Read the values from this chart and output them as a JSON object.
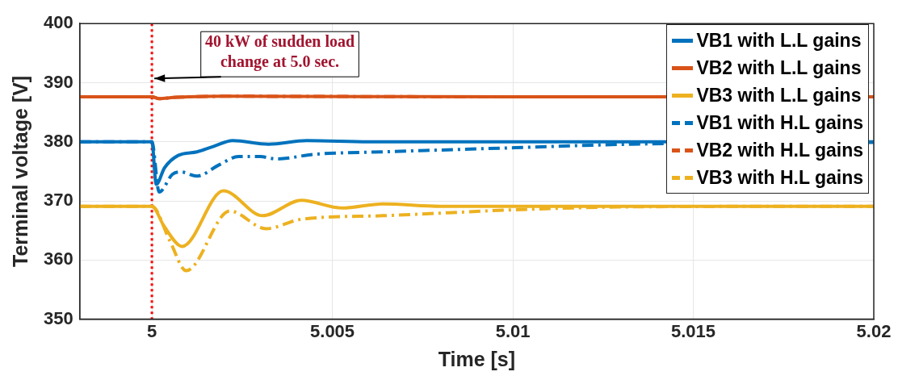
{
  "chart_data": {
    "type": "line",
    "xlabel": "Time [s]",
    "ylabel": "Terminal voltage [V]",
    "xlim": [
      4.998,
      5.02
    ],
    "xticks": [
      5,
      5.005,
      5.01,
      5.015,
      5.02
    ],
    "ylim": [
      350,
      400
    ],
    "yticks": [
      350,
      360,
      370,
      380,
      390,
      400
    ],
    "grid": true,
    "legend": "top right",
    "marker": "none",
    "ref_lines": [
      {
        "axis": "x",
        "value": 5,
        "color": "#ff0000",
        "line_style": "dotted"
      }
    ],
    "annotations": [
      {
        "text": "40 kW of sudden load change at 5.0 sec.",
        "x": 5,
        "y": 390.7
      }
    ],
    "series": [
      {
        "name": "VB1 with L.L gains",
        "color": "#0072bd",
        "line_style": "solid",
        "x": [
          4.998,
          5,
          5.00012,
          5.00035,
          5.00073,
          5.00125,
          5.0017,
          5.00224,
          5.00323,
          5.00429,
          5.006,
          5.01,
          5.02
        ],
        "values": [
          380,
          380,
          372.8,
          375.6,
          377.7,
          378.3,
          379.2,
          380.2,
          379.6,
          380.2,
          380,
          380,
          380
        ]
      },
      {
        "name": "VB2 with L.L gains",
        "color": "#d95319",
        "line_style": "solid",
        "x": [
          4.998,
          5,
          5.0002,
          5.0006,
          5.001,
          5.002,
          5.01,
          5.02
        ],
        "values": [
          387.6,
          387.6,
          387.3,
          387.5,
          387.6,
          387.7,
          387.6,
          387.6
        ]
      },
      {
        "name": "VB3 with L.L gains",
        "color": "#edb120",
        "line_style": "solid",
        "x": [
          4.998,
          5,
          5.00034,
          5.00084,
          5.00198,
          5.00307,
          5.00414,
          5.00527,
          5.0064,
          5.008,
          5.01,
          5.02
        ],
        "values": [
          369.1,
          369.1,
          365.7,
          362.3,
          371.7,
          367.5,
          370.1,
          368.8,
          369.5,
          369.1,
          369.1,
          369.1
        ]
      },
      {
        "name": "VB1 with H.L gains",
        "color": "#0072bd",
        "line_style": "dashed",
        "x": [
          4.998,
          5,
          5.0002,
          5.00057,
          5.0008,
          5.00125,
          5.00186,
          5.0024,
          5.003,
          5.00345,
          5.00452,
          5.0064,
          5.01005,
          5.0133,
          5.02
        ],
        "values": [
          380,
          380,
          371.5,
          374.5,
          374.9,
          374.2,
          376.1,
          377.5,
          377.5,
          377.1,
          377.9,
          378.3,
          379,
          379.6,
          379.9
        ]
      },
      {
        "name": "VB2 with H.L gains",
        "color": "#d95319",
        "line_style": "dashed",
        "x": [
          4.998,
          5,
          5.0002,
          5.0006,
          5.001,
          5.002,
          5.01,
          5.02
        ],
        "values": [
          387.6,
          387.6,
          387.3,
          387.5,
          387.6,
          387.7,
          387.6,
          387.6
        ]
      },
      {
        "name": "VB3 with H.L gains",
        "color": "#edb120",
        "line_style": "dashed",
        "x": [
          4.998,
          5,
          5.0005,
          5.00095,
          5.00216,
          5.00316,
          5.00414,
          5.0064,
          5.01005,
          5.0133,
          5.02
        ],
        "values": [
          369.1,
          369.1,
          363.2,
          358.2,
          368.3,
          365.3,
          366.9,
          367.5,
          368.5,
          369,
          369.1
        ]
      }
    ]
  }
}
